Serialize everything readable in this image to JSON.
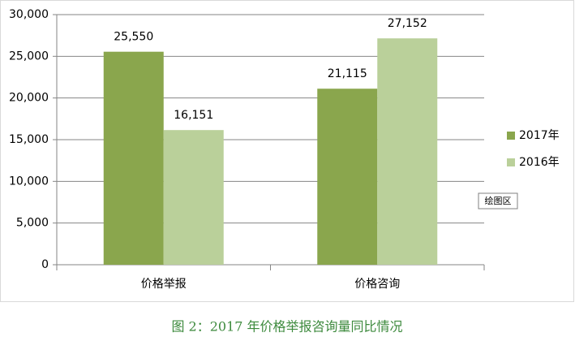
{
  "chart_data": {
    "type": "bar",
    "caption": "图 2：2017 年价格举报咨询量同比情况",
    "categories": [
      "价格举报",
      "价格咨询"
    ],
    "series": [
      {
        "name": "2017年",
        "color": "#8aa64d",
        "values": [
          25550,
          21115
        ],
        "value_labels": [
          "25,550",
          "21,115"
        ]
      },
      {
        "name": "2016年",
        "color": "#bad09a",
        "values": [
          16151,
          27152
        ],
        "value_labels": [
          "16,151",
          "27,152"
        ]
      }
    ],
    "ylim": [
      0,
      30000
    ],
    "yticks": [
      0,
      {
        "value": 5000,
        "label": "5,000"
      },
      {
        "value": 10000,
        "label": "10,000"
      },
      {
        "value": 15000,
        "label": "15,000"
      },
      {
        "value": 20000,
        "label": "20,000"
      },
      {
        "value": 25000,
        "label": "25,000"
      },
      {
        "value": 30000,
        "label": "30,000"
      }
    ],
    "grid": true,
    "legend": "right",
    "tooltip": "绘图区"
  }
}
